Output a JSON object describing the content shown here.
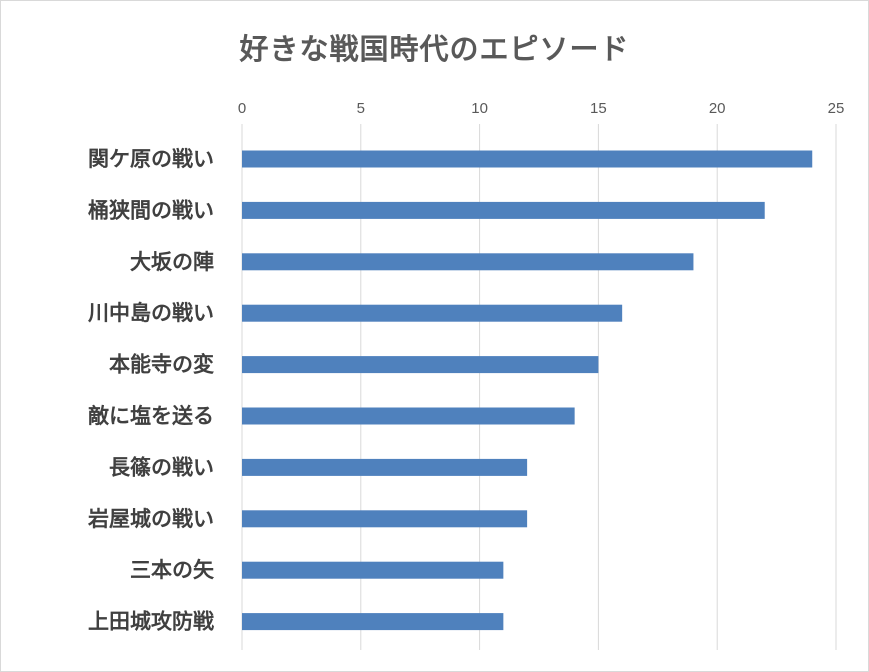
{
  "chart_data": {
    "type": "bar",
    "orientation": "horizontal",
    "title": "好きな戦国時代のエピソード",
    "categories": [
      "関ケ原の戦い",
      "桶狭間の戦い",
      "大坂の陣",
      "川中島の戦い",
      "本能寺の変",
      "敵に塩を送る",
      "長篠の戦い",
      "岩屋城の戦い",
      "三本の矢",
      "上田城攻防戦"
    ],
    "values": [
      24,
      22,
      19,
      16,
      15,
      14,
      12,
      12,
      11,
      11
    ],
    "xlim": [
      0,
      25
    ],
    "x_ticks": [
      "0",
      "5",
      "10",
      "15",
      "20",
      "25"
    ],
    "x_axis_position": "top",
    "grid": true,
    "legend": "none",
    "bar_color": "#4f81bd",
    "grid_color": "#d9d9d9",
    "label_color": "#404040",
    "title_color": "#595959"
  }
}
